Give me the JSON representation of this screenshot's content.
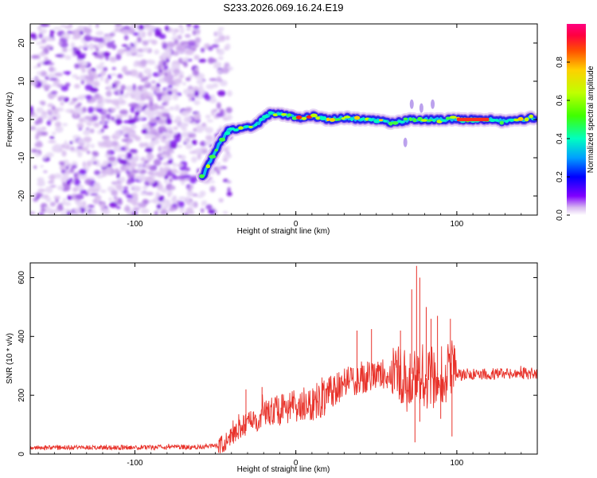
{
  "title": "S233.2026.069.16.24.E19",
  "chart_data": [
    {
      "type": "heatmap",
      "name": "spectrogram",
      "xlabel": "Height of straight line (km)",
      "ylabel": "Frequency (Hz)",
      "xlim": [
        -165,
        150
      ],
      "ylim": [
        -25,
        25
      ],
      "xticks": [
        -100,
        0,
        100
      ],
      "yticks": [
        -20,
        -10,
        0,
        10,
        20
      ],
      "colorbar": {
        "label": "Normalized spectral amplitude",
        "range": [
          0.0,
          1.0
        ],
        "ticks": [
          0.0,
          0.2,
          0.4,
          0.6,
          0.8
        ],
        "tick_labels": [
          "0.0",
          "0.2",
          "0.4",
          "0.6",
          "0.8"
        ],
        "colormap": [
          "#ffffff",
          "#d8b8f0",
          "#8000ff",
          "#0000ff",
          "#00a0ff",
          "#00ffc0",
          "#40ff00",
          "#c0ff00",
          "#ffd000",
          "#ff5000",
          "#ff0040",
          "#ff0080"
        ]
      },
      "signal_trace": {
        "x": [
          -58,
          -52,
          -47,
          -42,
          -35,
          -28,
          -22,
          -16,
          -10,
          -4,
          0,
          5,
          10,
          20,
          30,
          40,
          50,
          60,
          70,
          80,
          90,
          100,
          110,
          120,
          130,
          140,
          148
        ],
        "y": [
          -15,
          -10,
          -6,
          -3,
          -2.5,
          -2,
          -0.5,
          1.5,
          1.5,
          1,
          0.5,
          0.5,
          1,
          0,
          0.5,
          0,
          0,
          -1,
          0,
          0,
          0,
          0,
          0,
          0,
          -0.5,
          0,
          0.5
        ]
      },
      "noise_region_x": [
        -165,
        -50
      ]
    },
    {
      "type": "line",
      "name": "snr",
      "xlabel": "Height of straight line (km)",
      "ylabel": "SNR (10 * v/v)",
      "xlim": [
        -165,
        150
      ],
      "ylim": [
        0,
        650
      ],
      "xticks": [
        -100,
        0,
        100
      ],
      "yticks": [
        0,
        200,
        400,
        600
      ],
      "color": "#e8322a",
      "trend": {
        "x": [
          -165,
          -120,
          -60,
          -48,
          -42,
          -35,
          -28,
          -20,
          -10,
          0,
          10,
          20,
          30,
          40,
          50,
          60,
          70,
          80,
          90,
          100,
          110,
          130,
          150
        ],
        "y": [
          22,
          22,
          24,
          30,
          48,
          85,
          110,
          135,
          150,
          160,
          175,
          205,
          240,
          260,
          268,
          272,
          275,
          262,
          270,
          270,
          272,
          272,
          275
        ]
      },
      "spikes": {
        "x": [
          -31,
          -21,
          38,
          47,
          65,
          72,
          75,
          77,
          81,
          84,
          88,
          96
        ],
        "y": [
          220,
          228,
          420,
          425,
          420,
          560,
          640,
          600,
          500,
          460,
          470,
          460
        ]
      },
      "dips": {
        "x": [
          74,
          77,
          90,
          97
        ],
        "y": [
          40,
          110,
          120,
          60
        ]
      }
    }
  ]
}
